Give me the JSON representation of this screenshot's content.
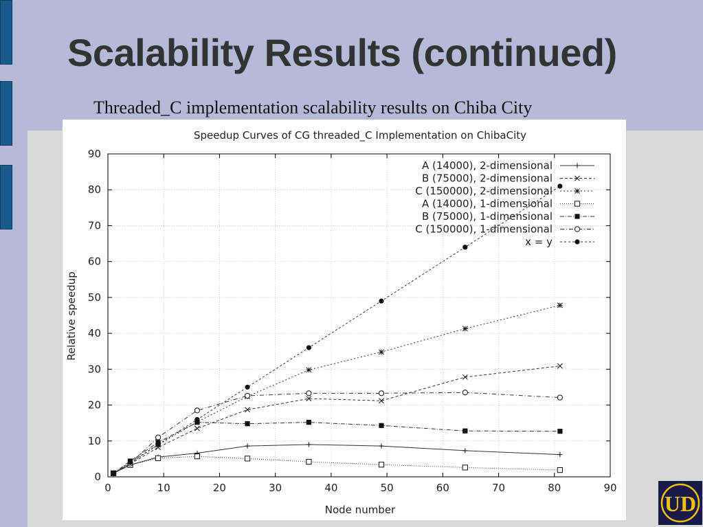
{
  "slide": {
    "title": "Scalability Results (continued)",
    "subtitle": "Threaded_C implementation scalability results on Chiba City",
    "logo_text": "UD"
  },
  "colors": {
    "background": "#b7b9d8",
    "title_text": "#333333",
    "side_tab": "#1a5a8a",
    "logo_bg": "#1a1a4a",
    "logo_gold": "#f2c200"
  },
  "chart_data": {
    "type": "line",
    "title": "Speedup Curves of CG threaded_C Implementation on ChibaCity",
    "xlabel": "Node number",
    "ylabel": "Relative speedup",
    "xlim": [
      0,
      90
    ],
    "ylim": [
      0,
      90
    ],
    "xticks": [
      0,
      10,
      20,
      30,
      40,
      50,
      60,
      70,
      80,
      90
    ],
    "yticks": [
      0,
      10,
      20,
      30,
      40,
      50,
      60,
      70,
      80,
      90
    ],
    "grid": true,
    "legend_position": "top-right",
    "series": [
      {
        "name": "A (14000),  2-dimensional",
        "marker": "plus",
        "dash": "",
        "x": [
          1,
          4,
          9,
          16,
          25,
          36,
          49,
          64,
          81
        ],
        "y": [
          1,
          3.3,
          5.5,
          6.6,
          8.6,
          9.0,
          8.6,
          7.3,
          6.2
        ]
      },
      {
        "name": "B (75000),  2-dimensional",
        "marker": "cross",
        "dash": "4,3",
        "x": [
          1,
          4,
          9,
          16,
          25,
          36,
          49,
          64,
          81
        ],
        "y": [
          1,
          3.6,
          8.2,
          13.5,
          18.7,
          21.8,
          21.2,
          27.8,
          30.9
        ]
      },
      {
        "name": "C (150000), 2-dimensional",
        "marker": "star",
        "dash": "2,3",
        "x": [
          1,
          4,
          9,
          16,
          25,
          36,
          49,
          64,
          81
        ],
        "y": [
          1,
          3.8,
          8.9,
          15.3,
          22.4,
          29.8,
          34.8,
          41.3,
          47.8
        ]
      },
      {
        "name": "A (14000),  1-dimensional",
        "marker": "open-square",
        "dash": "1,2",
        "x": [
          1,
          4,
          9,
          16,
          25,
          36,
          49,
          64,
          81
        ],
        "y": [
          1,
          3.3,
          5.2,
          5.7,
          5.1,
          4.2,
          3.4,
          2.6,
          1.9
        ]
      },
      {
        "name": "B (75000),  1-dimensional",
        "marker": "filled-square",
        "dash": "6,2,1,2",
        "x": [
          1,
          4,
          9,
          16,
          25,
          36,
          49,
          64,
          81
        ],
        "y": [
          1,
          4.4,
          9.6,
          15.2,
          14.8,
          15.2,
          14.3,
          12.8,
          12.7
        ]
      },
      {
        "name": "C (150000), 1-dimensional",
        "marker": "open-circle",
        "dash": "6,3,1,3",
        "x": [
          1,
          4,
          9,
          16,
          25,
          36,
          49,
          64,
          81
        ],
        "y": [
          1,
          3.7,
          11.0,
          18.5,
          22.6,
          23.3,
          23.3,
          23.5,
          22.1
        ]
      },
      {
        "name": "x = y",
        "marker": "filled-circle",
        "dash": "3,3",
        "x": [
          1,
          4,
          9,
          16,
          25,
          36,
          49,
          64,
          81
        ],
        "y": [
          1,
          4,
          9,
          16,
          25,
          36,
          49,
          64,
          81
        ]
      }
    ]
  }
}
